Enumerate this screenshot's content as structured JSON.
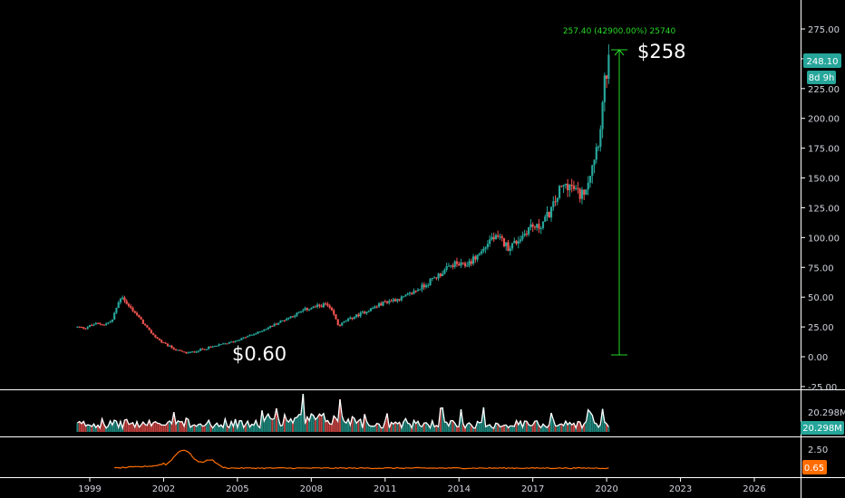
{
  "chart_data": {
    "type": "candlestick",
    "symbol_colors": {
      "up": "#26a69a",
      "down": "#ef5350",
      "volume_line": "#ffffff",
      "indicator": "#ff6d00",
      "measure": "#26d926",
      "badge": "#26a69a",
      "badge_red": "#f7525f"
    },
    "price_axis": {
      "ticks": [
        "275.00",
        "250.00",
        "225.00",
        "200.00",
        "175.00",
        "150.00",
        "125.00",
        "100.00",
        "75.00",
        "50.00",
        "25.00",
        "0.00",
        "-25.00"
      ],
      "range": [
        -25,
        290
      ]
    },
    "time_axis": {
      "ticks": [
        "1999",
        "2002",
        "2005",
        "2008",
        "2011",
        "2014",
        "2017",
        "2020",
        "2023",
        "2026"
      ]
    },
    "price_path": [
      [
        1998.5,
        25
      ],
      [
        1998.8,
        24
      ],
      [
        1999.0,
        26
      ],
      [
        1999.3,
        28
      ],
      [
        1999.6,
        27
      ],
      [
        1999.9,
        30
      ],
      [
        2000.1,
        42
      ],
      [
        2000.3,
        52
      ],
      [
        2000.5,
        44
      ],
      [
        2000.8,
        38
      ],
      [
        2001.1,
        30
      ],
      [
        2001.4,
        22
      ],
      [
        2001.7,
        16
      ],
      [
        2002.0,
        11
      ],
      [
        2002.3,
        8
      ],
      [
        2002.6,
        5
      ],
      [
        2002.9,
        3
      ],
      [
        2003.2,
        4
      ],
      [
        2003.5,
        6
      ],
      [
        2003.9,
        8
      ],
      [
        2004.3,
        10
      ],
      [
        2004.7,
        12
      ],
      [
        2005.0,
        14
      ],
      [
        2005.4,
        17
      ],
      [
        2005.8,
        20
      ],
      [
        2006.2,
        24
      ],
      [
        2006.6,
        28
      ],
      [
        2007.0,
        32
      ],
      [
        2007.4,
        36
      ],
      [
        2007.8,
        40
      ],
      [
        2008.2,
        42
      ],
      [
        2008.6,
        44
      ],
      [
        2008.9,
        36
      ],
      [
        2009.1,
        26
      ],
      [
        2009.4,
        30
      ],
      [
        2009.8,
        34
      ],
      [
        2010.2,
        38
      ],
      [
        2010.6,
        42
      ],
      [
        2011.0,
        46
      ],
      [
        2011.4,
        48
      ],
      [
        2011.8,
        50
      ],
      [
        2012.2,
        55
      ],
      [
        2012.6,
        60
      ],
      [
        2013.0,
        66
      ],
      [
        2013.4,
        72
      ],
      [
        2013.8,
        78
      ],
      [
        2014.2,
        76
      ],
      [
        2014.6,
        82
      ],
      [
        2015.0,
        90
      ],
      [
        2015.3,
        100
      ],
      [
        2015.7,
        98
      ],
      [
        2016.0,
        92
      ],
      [
        2016.3,
        96
      ],
      [
        2016.6,
        102
      ],
      [
        2016.9,
        110
      ],
      [
        2017.2,
        108
      ],
      [
        2017.5,
        115
      ],
      [
        2017.8,
        125
      ],
      [
        2018.1,
        140
      ],
      [
        2018.4,
        145
      ],
      [
        2018.7,
        140
      ],
      [
        2018.95,
        135
      ],
      [
        2019.2,
        145
      ],
      [
        2019.45,
        165
      ],
      [
        2019.7,
        185
      ],
      [
        2019.85,
        215
      ],
      [
        2019.95,
        235
      ],
      [
        2020.1,
        248
      ]
    ],
    "volume_axis": {
      "ticks": [
        "20.298M"
      ]
    },
    "volume_last": "20.298M",
    "indicator_axis": {
      "ticks": [
        "2.50"
      ]
    },
    "indicator_last": "0.65",
    "price_last": "248.10",
    "countdown": "8d 9h",
    "measure_label": "257.40 (42900.00%) 25740",
    "annotations": {
      "high_label": "$258",
      "low_label": "$0.60"
    }
  }
}
